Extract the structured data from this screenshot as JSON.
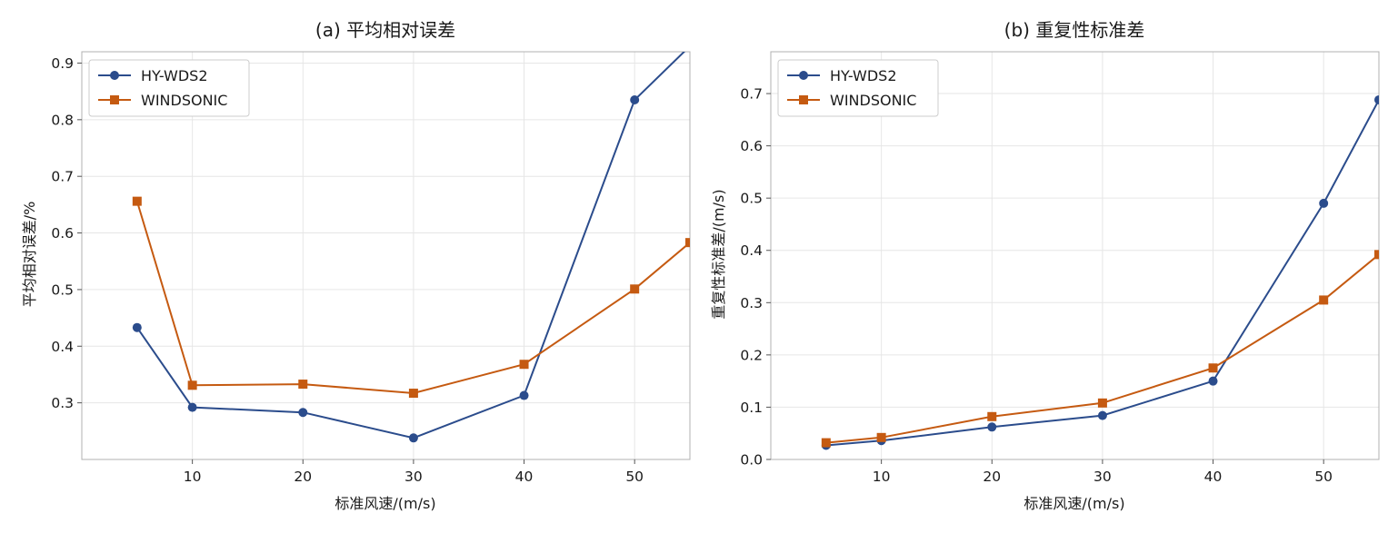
{
  "chart_data": [
    {
      "type": "line",
      "title": "(a) 平均相对误差",
      "xlabel": "标准风速/(m/s)",
      "ylabel": "平均相对误差/%",
      "xlim": [
        0,
        55
      ],
      "ylim": [
        0.2,
        0.92
      ],
      "xticks": [
        10,
        20,
        30,
        40,
        50
      ],
      "yticks": [
        0.3,
        0.4,
        0.5,
        0.6,
        0.7,
        0.8,
        0.9
      ],
      "ytick_labels": [
        "0.3",
        "0.4",
        "0.5",
        "0.6",
        "0.7",
        "0.8",
        "0.9"
      ],
      "grid": true,
      "legend_position": "top-left",
      "x": [
        5,
        10,
        20,
        30,
        40,
        50,
        55
      ],
      "series": [
        {
          "name": "HY-WDS2",
          "color": "#2b4c8c",
          "marker": "circle",
          "values": [
            0.433,
            0.292,
            0.283,
            0.238,
            0.313,
            0.835,
            0.93
          ]
        },
        {
          "name": "WINDSONIC",
          "color": "#c55a11",
          "marker": "square",
          "values": [
            0.656,
            0.331,
            0.333,
            0.317,
            0.368,
            0.501,
            0.583
          ]
        }
      ]
    },
    {
      "type": "line",
      "title": "(b) 重复性标准差",
      "xlabel": "标准风速/(m/s)",
      "ylabel": "重复性标准差/(m/s)",
      "xlim": [
        0,
        55
      ],
      "ylim": [
        0,
        0.78
      ],
      "xticks": [
        10,
        20,
        30,
        40,
        50
      ],
      "yticks": [
        0.0,
        0.1,
        0.2,
        0.3,
        0.4,
        0.5,
        0.6,
        0.7
      ],
      "ytick_labels": [
        "0.0",
        "0.1",
        "0.2",
        "0.3",
        "0.4",
        "0.5",
        "0.6",
        "0.7"
      ],
      "grid": true,
      "legend_position": "top-left",
      "x": [
        5,
        10,
        20,
        30,
        40,
        50,
        55
      ],
      "series": [
        {
          "name": "HY-WDS2",
          "color": "#2b4c8c",
          "marker": "circle",
          "values": [
            0.027,
            0.036,
            0.062,
            0.084,
            0.15,
            0.49,
            0.688
          ]
        },
        {
          "name": "WINDSONIC",
          "color": "#c55a11",
          "marker": "square",
          "values": [
            0.032,
            0.042,
            0.082,
            0.108,
            0.175,
            0.305,
            0.392
          ]
        }
      ]
    }
  ]
}
